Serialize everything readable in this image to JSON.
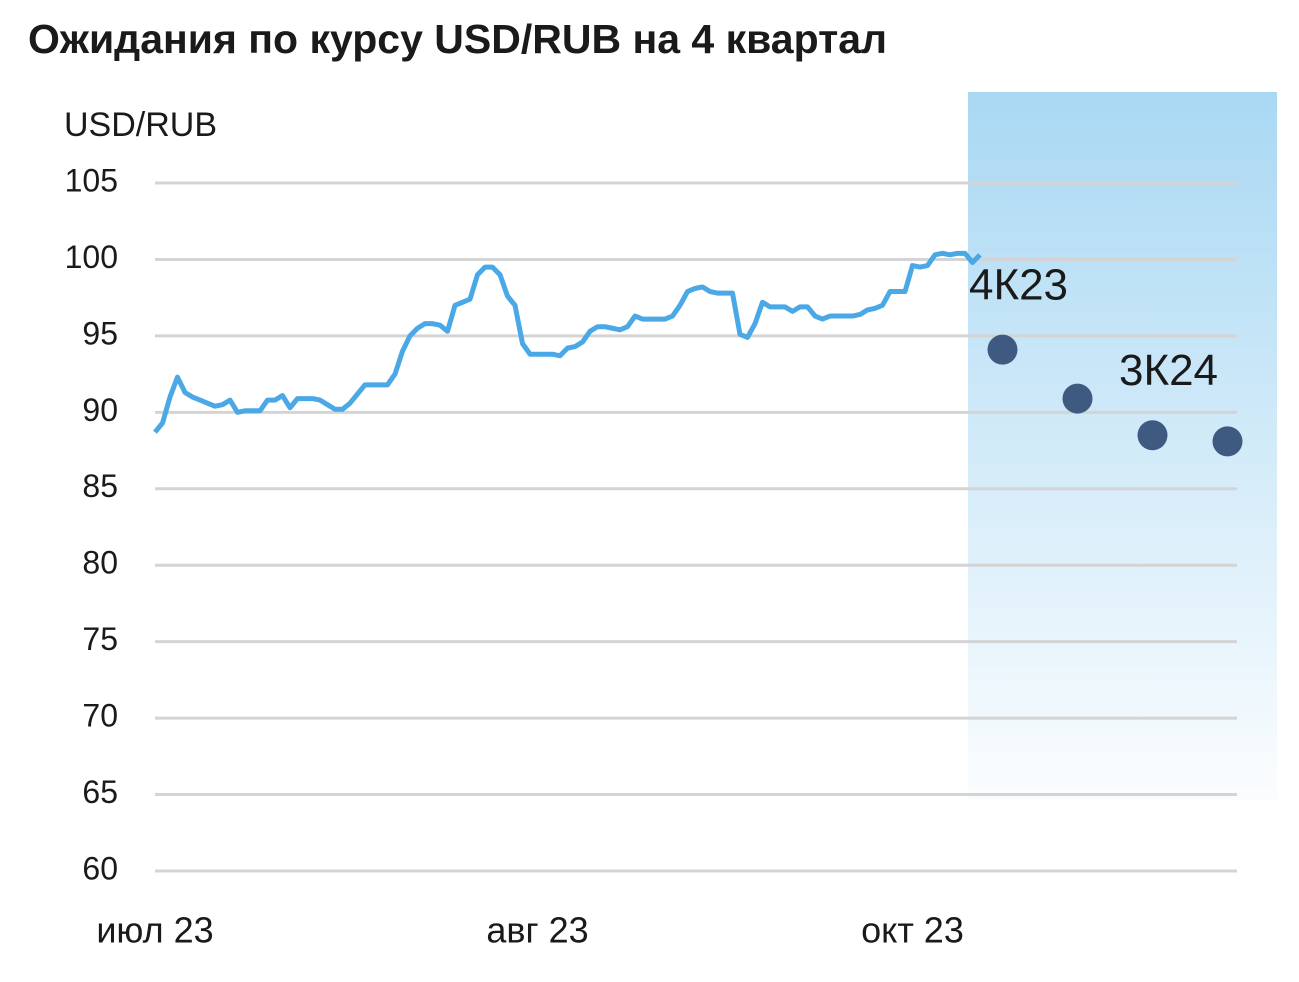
{
  "chart_data": {
    "type": "line",
    "title": "Ожидания по курсу USD/RUB на 4 квартал",
    "y_label": "USD/RUB",
    "categories": [
      "июл 23",
      null,
      null,
      null,
      null,
      null,
      null,
      null,
      null,
      null,
      null,
      null,
      null,
      null,
      null,
      null,
      null,
      null,
      null,
      null,
      null,
      null,
      null,
      null,
      null,
      null,
      null,
      null,
      null,
      null,
      null,
      null,
      null,
      null,
      null,
      null,
      null,
      null,
      null,
      null,
      null,
      null,
      null,
      null,
      null,
      null,
      null,
      null,
      null,
      null,
      null,
      "авг 23",
      null,
      null,
      null,
      null,
      null,
      null,
      null,
      null,
      null,
      null,
      null,
      null,
      null,
      null,
      null,
      null,
      null,
      null,
      null,
      null,
      null,
      null,
      null,
      null,
      null,
      null,
      null,
      null,
      null,
      null,
      null,
      null,
      null,
      null,
      null,
      null,
      null,
      null,
      null,
      null,
      null,
      null,
      null,
      null,
      null,
      null,
      null,
      null,
      null,
      "окт 23",
      null,
      null,
      null,
      null,
      null,
      null,
      null,
      null,
      null,
      null,
      null,
      null,
      null,
      null,
      null,
      null,
      null,
      null,
      null,
      null,
      null,
      null,
      null,
      null,
      null,
      null,
      null,
      null,
      null,
      null,
      null,
      null,
      null,
      null,
      null,
      null,
      null,
      null,
      null,
      null,
      null,
      null
    ],
    "series": [
      {
        "type": "line",
        "color": "#4aa8e6",
        "values": [
          88.7,
          89.3,
          91,
          92.3,
          91.3,
          91,
          90.8,
          90.6,
          90.4,
          90.5,
          90.8,
          90,
          90.1,
          90.1,
          90.1,
          90.8,
          90.8,
          91.1,
          90.3,
          90.9,
          90.9,
          90.9,
          90.8,
          90.5,
          90.2,
          90.2,
          90.6,
          91.2,
          91.8,
          91.8,
          91.8,
          91.8,
          92.5,
          94,
          95,
          95.5,
          95.8,
          95.8,
          95.7,
          95.3,
          97,
          97.2,
          97.4,
          99,
          99.5,
          99.5,
          99,
          97.6,
          97,
          94.5,
          93.8,
          93.8,
          93.8,
          93.8,
          93.7,
          94.2,
          94.3,
          94.6,
          95.3,
          95.6,
          95.6,
          95.5,
          95.4,
          95.6,
          96.3,
          96.1,
          96.1,
          96.1,
          96.1,
          96.3,
          97,
          97.9,
          98.1,
          98.2,
          97.9,
          97.8,
          97.8,
          97.8,
          95.1,
          94.9,
          95.8,
          97.2,
          96.9,
          96.9,
          96.9,
          96.6,
          96.9,
          96.9,
          96.3,
          96.1,
          96.3,
          96.3,
          96.3,
          96.3,
          96.4,
          96.7,
          96.8,
          97,
          97.9,
          97.9,
          97.9,
          99.6,
          99.5,
          99.6,
          100.3,
          100.4,
          100.3,
          100.4,
          100.4,
          99.8,
          100.3,
          null,
          null,
          null,
          null,
          null,
          null,
          null,
          null,
          null,
          null,
          null,
          null,
          null,
          null,
          null,
          null,
          null,
          null,
          null,
          null,
          null,
          null,
          null,
          null,
          null,
          null,
          null,
          null,
          null,
          null,
          null,
          null,
          null
        ]
      },
      {
        "type": "scatter",
        "color": "#3f5a80",
        "values": [
          null,
          null,
          null,
          null,
          null,
          null,
          null,
          null,
          null,
          null,
          null,
          null,
          null,
          null,
          null,
          null,
          null,
          null,
          null,
          null,
          null,
          null,
          null,
          null,
          null,
          null,
          null,
          null,
          null,
          null,
          null,
          null,
          null,
          null,
          null,
          null,
          null,
          null,
          null,
          null,
          null,
          null,
          null,
          null,
          null,
          null,
          null,
          null,
          null,
          null,
          null,
          null,
          null,
          null,
          null,
          null,
          null,
          null,
          null,
          null,
          null,
          null,
          null,
          null,
          null,
          null,
          null,
          null,
          null,
          null,
          null,
          null,
          null,
          null,
          null,
          null,
          null,
          null,
          null,
          null,
          null,
          null,
          null,
          null,
          null,
          null,
          null,
          null,
          null,
          null,
          null,
          null,
          null,
          null,
          null,
          null,
          null,
          null,
          null,
          null,
          null,
          null,
          null,
          null,
          null,
          null,
          null,
          null,
          null,
          null,
          null,
          null,
          null,
          94.1,
          null,
          null,
          null,
          null,
          null,
          null,
          null,
          null,
          null,
          90.9,
          null,
          null,
          null,
          null,
          null,
          null,
          null,
          null,
          null,
          88.5,
          null,
          null,
          null,
          null,
          null,
          null,
          null,
          null,
          null,
          88.1
        ],
        "labels": [
          null,
          null,
          null,
          null,
          null,
          null,
          null,
          null,
          null,
          null,
          null,
          null,
          null,
          null,
          null,
          null,
          null,
          null,
          null,
          null,
          null,
          null,
          null,
          null,
          null,
          null,
          null,
          null,
          null,
          null,
          null,
          null,
          null,
          null,
          null,
          null,
          null,
          null,
          null,
          null,
          null,
          null,
          null,
          null,
          null,
          null,
          null,
          null,
          null,
          null,
          null,
          null,
          null,
          null,
          null,
          null,
          null,
          null,
          null,
          null,
          null,
          null,
          null,
          null,
          null,
          null,
          null,
          null,
          null,
          null,
          null,
          null,
          null,
          null,
          null,
          null,
          null,
          null,
          null,
          null,
          null,
          null,
          null,
          null,
          null,
          null,
          null,
          null,
          null,
          null,
          null,
          null,
          null,
          null,
          null,
          null,
          null,
          null,
          null,
          null,
          null,
          null,
          null,
          null,
          null,
          null,
          null,
          null,
          null,
          null,
          null,
          null,
          null,
          "4К23",
          null,
          null,
          null,
          null,
          null,
          null,
          null,
          null,
          null,
          null,
          null,
          null,
          null,
          null,
          null,
          null,
          null,
          null,
          null,
          "3К24",
          null,
          null,
          null,
          null,
          null,
          null,
          null,
          null,
          null,
          null
        ]
      }
    ],
    "ylim": [
      60,
      105
    ],
    "yticks": [
      60,
      65,
      70,
      75,
      80,
      85,
      90,
      95,
      100,
      105
    ],
    "grid": true
  }
}
